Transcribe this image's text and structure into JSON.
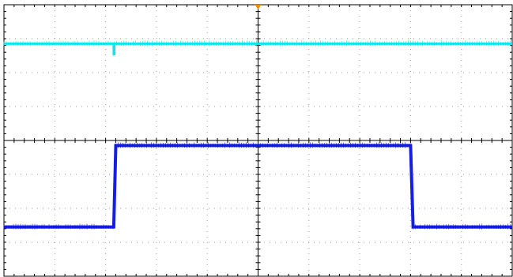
{
  "screen": {
    "background": "#ffffff",
    "grid_color": "#9a9a9a",
    "frame_color": "#000000",
    "divisions": {
      "horizontal": 10,
      "vertical": 8
    },
    "subdivisions_per_division": 5,
    "grid_style": "dotted"
  },
  "trigger_marker": {
    "icon": "trigger-position-arrow",
    "color": "#f08c00",
    "time_division": 5
  },
  "chart_data": {
    "type": "line",
    "x_unit": "divisions",
    "y_unit": "divisions",
    "xlim": [
      0,
      10
    ],
    "ylim": [
      0,
      8
    ],
    "series": [
      {
        "color": "#00e5ee",
        "x": [
          0,
          2.16,
          2.16,
          2.17,
          2.17,
          10
        ],
        "y": [
          6.85,
          6.85,
          6.55,
          6.55,
          6.85,
          6.85
        ]
      },
      {
        "color": "#0a12e0",
        "x": [
          0,
          2.16,
          2.2,
          8.0,
          8.05,
          10
        ],
        "y": [
          1.45,
          1.45,
          3.85,
          3.85,
          1.45,
          1.45
        ]
      }
    ]
  }
}
